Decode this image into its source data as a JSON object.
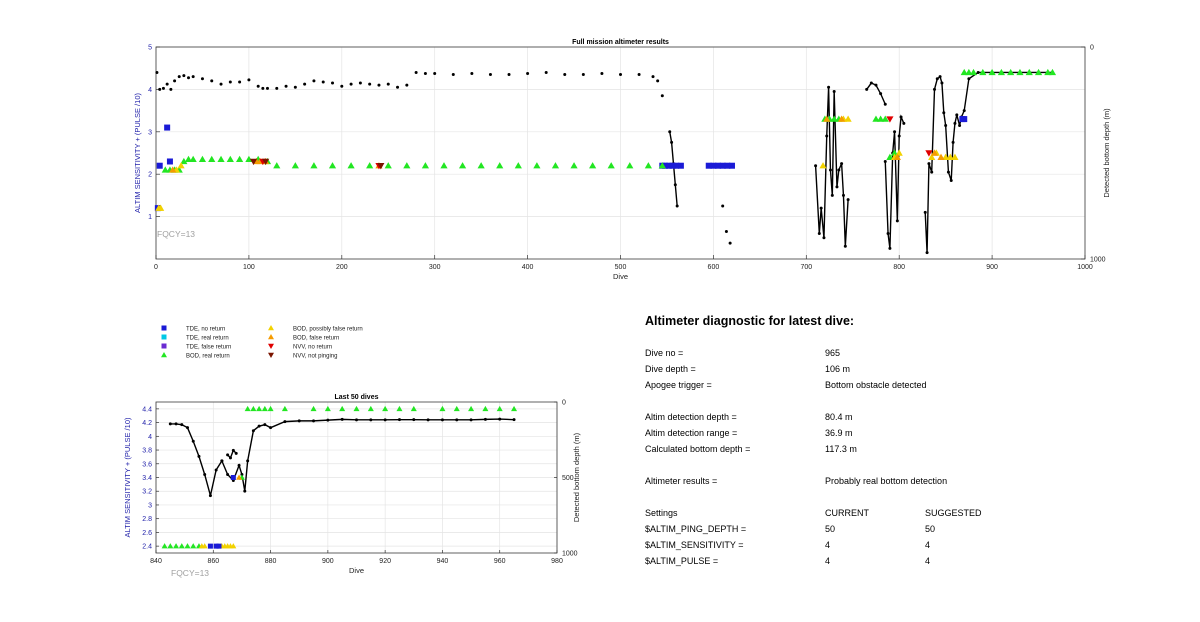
{
  "colors": {
    "tde_no_return": "#1a1ad6",
    "tde_real_return": "#00c8e6",
    "tde_false_return": "#6a2bd1",
    "bod_real_return": "#22e622",
    "bod_possibly_false": "#f2d200",
    "bod_false_return": "#f59b00",
    "nvv_no_return": "#e00000",
    "nvv_not_pinging": "#7a1500",
    "depth_line": "#000000",
    "axis_left": "#2222aa",
    "fqcy": "#a0a0a0"
  },
  "legend": [
    {
      "label": "TDE, no return",
      "marker": "square",
      "color_key": "tde_no_return"
    },
    {
      "label": "TDE, real return",
      "marker": "square",
      "color_key": "tde_real_return"
    },
    {
      "label": "TDE, false return",
      "marker": "square",
      "color_key": "tde_false_return"
    },
    {
      "label": "BOD, real return",
      "marker": "triangle-up",
      "color_key": "bod_real_return"
    },
    {
      "label": "BOD, possibly false return",
      "marker": "triangle-up",
      "color_key": "bod_possibly_false"
    },
    {
      "label": "BOD, false return",
      "marker": "triangle-up",
      "color_key": "bod_false_return"
    },
    {
      "label": "NVV, no return",
      "marker": "triangle-down",
      "color_key": "nvv_no_return"
    },
    {
      "label": "NVV, not pinging",
      "marker": "triangle-down",
      "color_key": "nvv_not_pinging"
    }
  ],
  "chart_data": [
    {
      "type": "scatter",
      "title": "Full mission altimeter results",
      "xlabel": "Dive",
      "ylabel": "ALTIM SENSITIVITY + (PULSE /10)",
      "y2label": "Detected bottom depth (m)",
      "annotation": "FQCY=13",
      "xlim": [
        0,
        1000
      ],
      "ylim": [
        0,
        5
      ],
      "y2lim": [
        1000,
        0
      ],
      "xticks": [
        0,
        100,
        200,
        300,
        400,
        500,
        600,
        700,
        800,
        900,
        1000
      ],
      "yticks": [
        1,
        2,
        3,
        4,
        5
      ],
      "y2ticks": [
        0,
        1000
      ],
      "grid": true,
      "series": [
        {
          "color_key": "depth_line",
          "marker": "dot",
          "line": false,
          "x": [
            1,
            4,
            8,
            12,
            16,
            20,
            25,
            30,
            35,
            40,
            50,
            60,
            70,
            80,
            90,
            100,
            110,
            115,
            120,
            130,
            140,
            150,
            160,
            170,
            180,
            190,
            200,
            210,
            220,
            230,
            240,
            250,
            260,
            270,
            280,
            290,
            300,
            320,
            340,
            360,
            380,
            400,
            420,
            440,
            460,
            480,
            500,
            520,
            535,
            540,
            545
          ],
          "y": [
            120,
            200,
            195,
            175,
            200,
            160,
            140,
            135,
            145,
            140,
            150,
            160,
            175,
            165,
            165,
            155,
            185,
            195,
            195,
            195,
            185,
            190,
            175,
            160,
            165,
            170,
            185,
            175,
            170,
            175,
            180,
            175,
            190,
            180,
            120,
            125,
            125,
            130,
            125,
            130,
            130,
            125,
            120,
            130,
            130,
            125,
            130,
            130,
            140,
            160,
            230
          ]
        },
        {
          "color_key": "depth_line",
          "marker": "dot",
          "line": true,
          "x": [
            553,
            555,
            557,
            559,
            561
          ],
          "y": [
            400,
            450,
            550,
            650,
            750
          ]
        },
        {
          "color_key": "depth_line",
          "marker": "dot",
          "line": false,
          "x": [
            610,
            614,
            618
          ],
          "y": [
            750,
            870,
            925
          ]
        },
        {
          "color_key": "depth_line",
          "marker": "dot",
          "line": true,
          "x": [
            710,
            714,
            716,
            719,
            722,
            724,
            726,
            728,
            730,
            733,
            735,
            738,
            740,
            742,
            745
          ],
          "y": [
            560,
            880,
            760,
            900,
            420,
            190,
            580,
            700,
            210,
            660,
            580,
            550,
            700,
            940,
            720
          ]
        },
        {
          "color_key": "depth_line",
          "marker": "dot",
          "line": true,
          "x": [
            765,
            770,
            775,
            780,
            785
          ],
          "y": [
            200,
            170,
            180,
            220,
            270
          ]
        },
        {
          "color_key": "depth_line",
          "marker": "dot",
          "line": true,
          "x": [
            785,
            788,
            790,
            793,
            795,
            798,
            800,
            802,
            805
          ],
          "y": [
            540,
            880,
            950,
            500,
            400,
            820,
            420,
            330,
            360
          ]
        },
        {
          "color_key": "depth_line",
          "marker": "dot",
          "line": true,
          "x": [
            828,
            830,
            832,
            835,
            838,
            841,
            844,
            846,
            848,
            850,
            853,
            856,
            858,
            860,
            862,
            865,
            867,
            870,
            875,
            885,
            900,
            920,
            940,
            960,
            965
          ],
          "y": [
            780,
            970,
            550,
            590,
            200,
            150,
            140,
            170,
            310,
            370,
            590,
            630,
            450,
            360,
            320,
            370,
            330,
            300,
            150,
            120,
            120,
            120,
            120,
            120,
            120
          ]
        },
        {
          "color_key": "tde_no_return",
          "marker": "square",
          "line": false,
          "x": [
            2,
            4,
            12,
            15,
            545,
            548,
            552,
            556,
            560,
            565,
            595,
            600,
            605,
            610,
            615,
            620,
            868,
            870
          ],
          "y": [
            1.2,
            2.2,
            3.1,
            2.3,
            2.2,
            2.2,
            2.2,
            2.2,
            2.2,
            2.2,
            2.2,
            2.2,
            2.2,
            2.2,
            2.2,
            2.2,
            3.3,
            3.3
          ]
        },
        {
          "color_key": "bod_real_return",
          "marker": "triangle-up",
          "line": false,
          "x": [
            10,
            15,
            20,
            25,
            30,
            35,
            40,
            50,
            60,
            70,
            80,
            90,
            100,
            110,
            120,
            130,
            150,
            170,
            190,
            210,
            230,
            250,
            270,
            290,
            310,
            330,
            350,
            370,
            390,
            410,
            430,
            450,
            470,
            490,
            510,
            530,
            545,
            720,
            725,
            730,
            735,
            775,
            780,
            785,
            790,
            795,
            870,
            875,
            880,
            890,
            900,
            910,
            920,
            930,
            940,
            950,
            960,
            965
          ],
          "y": [
            2.1,
            2.1,
            2.1,
            2.1,
            2.3,
            2.35,
            2.35,
            2.35,
            2.35,
            2.35,
            2.35,
            2.35,
            2.35,
            2.35,
            2.3,
            2.2,
            2.2,
            2.2,
            2.2,
            2.2,
            2.2,
            2.2,
            2.2,
            2.2,
            2.2,
            2.2,
            2.2,
            2.2,
            2.2,
            2.2,
            2.2,
            2.2,
            2.2,
            2.2,
            2.2,
            2.2,
            2.2,
            3.3,
            3.3,
            3.3,
            3.3,
            3.3,
            3.3,
            3.3,
            2.4,
            2.5,
            4.4,
            4.4,
            4.4,
            4.4,
            4.4,
            4.4,
            4.4,
            4.4,
            4.4,
            4.4,
            4.4,
            4.4
          ]
        },
        {
          "color_key": "bod_possibly_false",
          "marker": "triangle-up",
          "line": false,
          "x": [
            3,
            5,
            22,
            27,
            718,
            740,
            745,
            795,
            800,
            835,
            840,
            850,
            855,
            860
          ],
          "y": [
            1.2,
            1.2,
            2.1,
            2.2,
            2.2,
            3.3,
            3.3,
            2.4,
            2.5,
            2.4,
            2.5,
            2.4,
            2.4,
            2.4
          ]
        },
        {
          "color_key": "bod_false_return",
          "marker": "triangle-up",
          "line": false,
          "x": [
            18,
            108,
            112,
            118,
            240,
            722,
            738,
            798,
            838,
            845
          ],
          "y": [
            2.1,
            2.3,
            2.3,
            2.3,
            2.2,
            3.3,
            3.3,
            2.4,
            2.5,
            2.4
          ]
        },
        {
          "color_key": "nvv_no_return",
          "marker": "triangle-down",
          "line": false,
          "x": [
            115,
            240,
            790,
            832
          ],
          "y": [
            2.3,
            2.2,
            3.3,
            2.5
          ]
        },
        {
          "color_key": "nvv_not_pinging",
          "marker": "triangle-down",
          "line": false,
          "x": [
            105,
            118,
            242
          ],
          "y": [
            2.3,
            2.3,
            2.2
          ]
        }
      ]
    },
    {
      "type": "scatter",
      "title": "Last 50 dives",
      "xlabel": "Dive",
      "ylabel": "ALTIM SENSITIVITY + (PULSE /10)",
      "y2label": "Detected bottom depth (m)",
      "annotation": "FQCY=13",
      "xlim": [
        840,
        980
      ],
      "ylim": [
        2.3,
        4.5
      ],
      "y2lim": [
        1000,
        0
      ],
      "xticks": [
        840,
        860,
        880,
        900,
        920,
        940,
        960,
        980
      ],
      "yticks": [
        2.4,
        2.6,
        2.8,
        3,
        3.2,
        3.4,
        3.6,
        3.8,
        4,
        4.2,
        4.4
      ],
      "ytick_labels": [
        "2.4",
        "2.6",
        "2.8",
        "3",
        "3.2",
        "3.4",
        "3.6",
        "3.8",
        "4",
        "4.2",
        "4.4"
      ],
      "y2ticks": [
        0,
        500,
        1000
      ],
      "grid": true,
      "series": [
        {
          "color_key": "depth_line",
          "marker": "dot",
          "line": true,
          "x": [
            845,
            847,
            849,
            851,
            853,
            855,
            857,
            859,
            861,
            863
          ],
          "y": [
            145,
            145,
            150,
            170,
            260,
            360,
            480,
            620,
            450,
            390
          ]
        },
        {
          "color_key": "depth_line",
          "marker": "dot",
          "line": true,
          "x": [
            863,
            865,
            867,
            869,
            870,
            871,
            872,
            874,
            876,
            878,
            880,
            885,
            890,
            895,
            900,
            905,
            910,
            915,
            920,
            925,
            930,
            935,
            940,
            945,
            950,
            955,
            960,
            965
          ],
          "y": [
            390,
            480,
            520,
            420,
            480,
            590,
            390,
            190,
            160,
            150,
            170,
            130,
            125,
            125,
            120,
            115,
            118,
            118,
            118,
            117,
            117,
            118,
            118,
            118,
            118,
            115,
            113,
            117
          ]
        },
        {
          "color_key": "depth_line",
          "marker": "dot",
          "line": true,
          "x": [
            865,
            866,
            867,
            868
          ],
          "y": [
            350,
            370,
            320,
            340
          ]
        },
        {
          "color_key": "bod_real_return",
          "marker": "triangle-up",
          "line": false,
          "x": [
            843,
            845,
            847,
            849,
            851,
            853,
            855,
            870,
            872,
            874,
            876,
            878,
            880,
            885,
            895,
            900,
            905,
            910,
            915,
            920,
            925,
            930,
            940,
            945,
            950,
            955,
            960,
            965
          ],
          "y": [
            2.4,
            2.4,
            2.4,
            2.4,
            2.4,
            2.4,
            2.4,
            3.4,
            4.4,
            4.4,
            4.4,
            4.4,
            4.4,
            4.4,
            4.4,
            4.4,
            4.4,
            4.4,
            4.4,
            4.4,
            4.4,
            4.4,
            4.4,
            4.4,
            4.4,
            4.4,
            4.4,
            4.4
          ]
        },
        {
          "color_key": "bod_possibly_false",
          "marker": "triangle-up",
          "line": false,
          "x": [
            856,
            857,
            863,
            864,
            865,
            866,
            867
          ],
          "y": [
            2.4,
            2.4,
            2.4,
            2.4,
            2.4,
            2.4,
            2.4
          ]
        },
        {
          "color_key": "bod_false_return",
          "marker": "triangle-up",
          "line": false,
          "x": [
            869
          ],
          "y": [
            3.4
          ]
        },
        {
          "color_key": "tde_no_return",
          "marker": "square",
          "line": false,
          "x": [
            859,
            861,
            862,
            867
          ],
          "y": [
            2.4,
            2.4,
            2.4,
            3.4
          ]
        }
      ]
    }
  ],
  "diagnostic": {
    "title": "Altimeter diagnostic for latest dive:",
    "rows": [
      {
        "label": "Dive no =",
        "current": "965",
        "suggested": ""
      },
      {
        "label": "Dive depth =",
        "current": "106 m",
        "suggested": ""
      },
      {
        "label": "Apogee trigger =",
        "current": "Bottom obstacle detected",
        "suggested": ""
      },
      {
        "label": "Altim detection depth =",
        "current": "80.4 m",
        "suggested": ""
      },
      {
        "label": "Altim detection range =",
        "current": "36.9 m",
        "suggested": ""
      },
      {
        "label": "Calculated bottom depth =",
        "current": "117.3 m",
        "suggested": ""
      },
      {
        "label": "Altimeter results =",
        "current": "Probably real bottom detection",
        "suggested": ""
      },
      {
        "label": "Settings",
        "current": "CURRENT",
        "suggested": "SUGGESTED"
      },
      {
        "label": "$ALTIM_PING_DEPTH =",
        "current": "50",
        "suggested": "50"
      },
      {
        "label": "$ALTIM_SENSITIVITY =",
        "current": "4",
        "suggested": "4"
      },
      {
        "label": "$ALTIM_PULSE =",
        "current": "4",
        "suggested": "4"
      }
    ]
  }
}
